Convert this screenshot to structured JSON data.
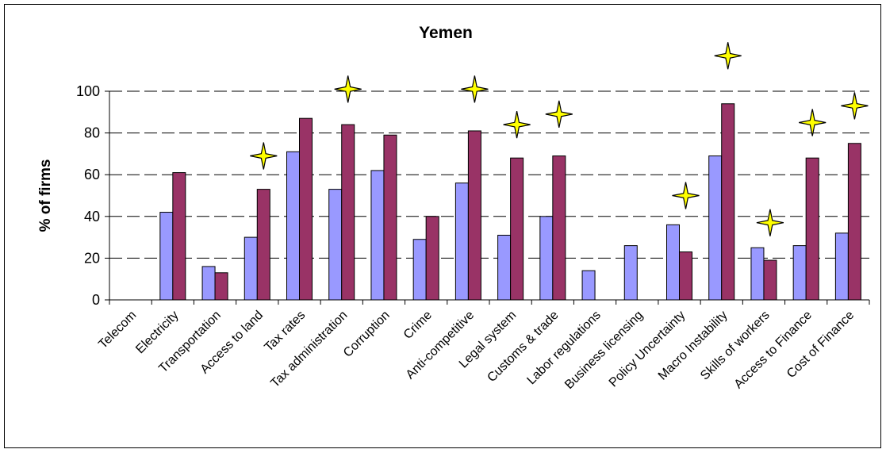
{
  "chart_data": {
    "type": "bar",
    "title": "Yemen",
    "ylabel": "% of firms",
    "xlabel": "",
    "ylim": [
      0,
      100
    ],
    "yticks": [
      0,
      20,
      40,
      60,
      80,
      100
    ],
    "grid": "dashed-horizontal",
    "legend": "none",
    "categories": [
      "Telecom",
      "Electricity",
      "Transportation",
      "Access to land",
      "Tax rates",
      "Tax administration",
      "Corruption",
      "Crime",
      "Anti-competitive",
      "Legal system",
      "Customs & trade",
      "Labor regulations",
      "Business licensing",
      "Policy Uncertainty",
      "Macro Instability",
      "Skills of workers",
      "Access to Finance",
      "Cost of Finance"
    ],
    "series": [
      {
        "color": "#9999ff",
        "values": [
          0,
          42,
          16,
          30,
          71,
          53,
          62,
          29,
          56,
          31,
          40,
          14,
          26,
          36,
          69,
          25,
          26,
          32
        ]
      },
      {
        "color": "#993366",
        "values": [
          0,
          61,
          13,
          53,
          87,
          84,
          79,
          40,
          81,
          68,
          69,
          null,
          null,
          23,
          94,
          19,
          68,
          75
        ]
      }
    ],
    "stars": [
      {
        "category": "Access to land",
        "value": 69
      },
      {
        "category": "Tax administration",
        "value": 101
      },
      {
        "category": "Anti-competitive",
        "value": 101
      },
      {
        "category": "Legal system",
        "value": 84
      },
      {
        "category": "Customs & trade",
        "value": 89
      },
      {
        "category": "Policy Uncertainty",
        "value": 50
      },
      {
        "category": "Macro Instability",
        "value": 117
      },
      {
        "category": "Skills of workers",
        "value": 37
      },
      {
        "category": "Access to Finance",
        "value": 85
      },
      {
        "category": "Cost of Finance",
        "value": 93
      }
    ],
    "star_color": "#ffff00"
  }
}
